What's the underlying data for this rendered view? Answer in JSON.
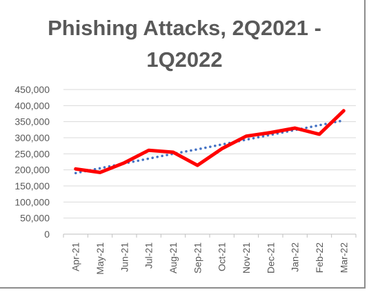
{
  "chart_data": {
    "type": "line",
    "title": "Phishing Attacks, 2Q2021 -\n1Q2022",
    "xlabel": "",
    "ylabel": "",
    "categories": [
      "Apr-21",
      "May-21",
      "Jun-21",
      "Jul-21",
      "Aug-21",
      "Sep-21",
      "Oct-21",
      "Nov-21",
      "Dec-21",
      "Jan-22",
      "Feb-22",
      "Mar-22"
    ],
    "ylim": [
      0,
      450000
    ],
    "yticks": [
      0,
      50000,
      100000,
      150000,
      200000,
      250000,
      300000,
      350000,
      400000,
      450000
    ],
    "ytick_labels": [
      "0",
      "50,000",
      "100,000",
      "150,000",
      "200,000",
      "250,000",
      "300,000",
      "350,000",
      "400,000",
      "450,000"
    ],
    "grid": true,
    "legend": "none",
    "series": [
      {
        "values": [
          203000,
          192000,
          222000,
          261000,
          255000,
          214000,
          266000,
          305000,
          316000,
          330000,
          311000,
          384000
        ],
        "color": "#ff0000",
        "style": "solid"
      },
      {
        "values": [
          190000,
          205000,
          220000,
          235000,
          250000,
          264000,
          279000,
          294000,
          309000,
          324000,
          339000,
          354000
        ],
        "color": "#4472c4",
        "style": "dotted",
        "kind": "linear-trendline"
      }
    ]
  }
}
